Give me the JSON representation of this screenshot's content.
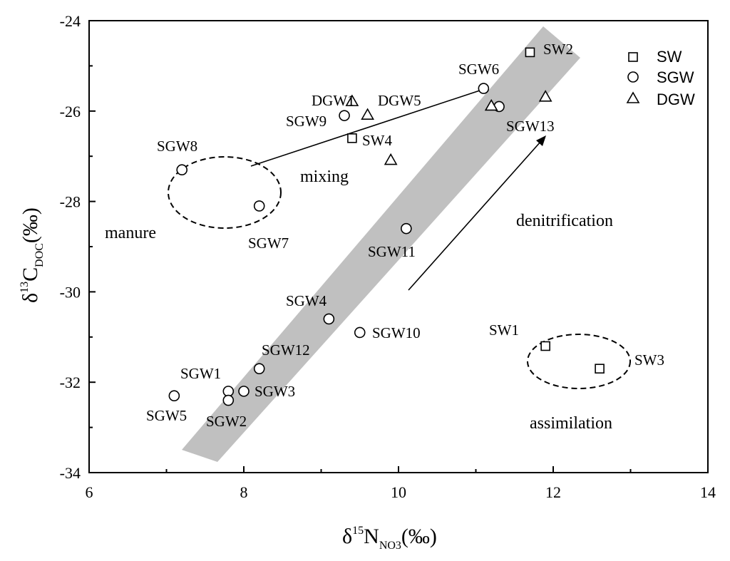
{
  "chart_data": {
    "type": "scatter",
    "title": "",
    "xlabel": {
      "prefix": "δ",
      "sup": "15",
      "main": "N",
      "sub": "NO3",
      "suffix": "(‰)"
    },
    "ylabel": {
      "prefix": "δ",
      "sup": "13",
      "main": "C",
      "sub": "DOC",
      "suffix": "(‰)"
    },
    "xlim": [
      6,
      14
    ],
    "ylim": [
      -34,
      -24
    ],
    "x_ticks": [
      6,
      8,
      10,
      12,
      14
    ],
    "x_tick_labels": [
      "6",
      "8",
      "10",
      "12",
      "14"
    ],
    "y_ticks": [
      -34,
      -32,
      -30,
      -28,
      -26,
      -24
    ],
    "y_tick_labels": [
      "-34",
      "-32",
      "-30",
      "-28",
      "-26",
      "-24"
    ],
    "legend_position": "top-right",
    "series": [
      {
        "name": "SW",
        "marker": "square",
        "points": [
          {
            "label": "SW1",
            "x": 11.9,
            "y": -31.2
          },
          {
            "label": "SW2",
            "x": 11.7,
            "y": -24.7
          },
          {
            "label": "SW3",
            "x": 12.6,
            "y": -31.7
          },
          {
            "label": "SW4",
            "x": 9.4,
            "y": -26.6
          }
        ]
      },
      {
        "name": "SGW",
        "marker": "circle",
        "points": [
          {
            "label": "SGW1",
            "x": 7.8,
            "y": -32.2
          },
          {
            "label": "SGW2",
            "x": 7.8,
            "y": -32.4
          },
          {
            "label": "SGW3",
            "x": 8.0,
            "y": -32.2
          },
          {
            "label": "SGW4",
            "x": 9.1,
            "y": -30.6
          },
          {
            "label": "SGW5",
            "x": 7.1,
            "y": -32.3
          },
          {
            "label": "SGW6",
            "x": 11.1,
            "y": -25.5
          },
          {
            "label": "SGW7",
            "x": 8.2,
            "y": -28.1
          },
          {
            "label": "SGW8",
            "x": 7.2,
            "y": -27.3
          },
          {
            "label": "SGW9",
            "x": 9.3,
            "y": -26.1
          },
          {
            "label": "SGW10",
            "x": 9.5,
            "y": -30.9
          },
          {
            "label": "SGW11",
            "x": 10.1,
            "y": -28.6
          },
          {
            "label": "SGW12",
            "x": 8.2,
            "y": -31.7
          },
          {
            "label": "SGW13",
            "x": 11.3,
            "y": -25.9
          }
        ]
      },
      {
        "name": "DGW",
        "marker": "triangle",
        "points": [
          {
            "label": "DGW1",
            "x": 9.4,
            "y": -25.8
          },
          {
            "label": "DGW5",
            "x": 9.6,
            "y": -26.1
          },
          {
            "label": "",
            "x": 9.9,
            "y": -27.1
          },
          {
            "label": "",
            "x": 11.2,
            "y": -25.9
          },
          {
            "label": "",
            "x": 11.9,
            "y": -25.7
          }
        ]
      }
    ],
    "annotations": {
      "manure": "manure",
      "mixing": "mixing",
      "denitrification": "denitrification",
      "assimilation": "assimilation"
    }
  }
}
